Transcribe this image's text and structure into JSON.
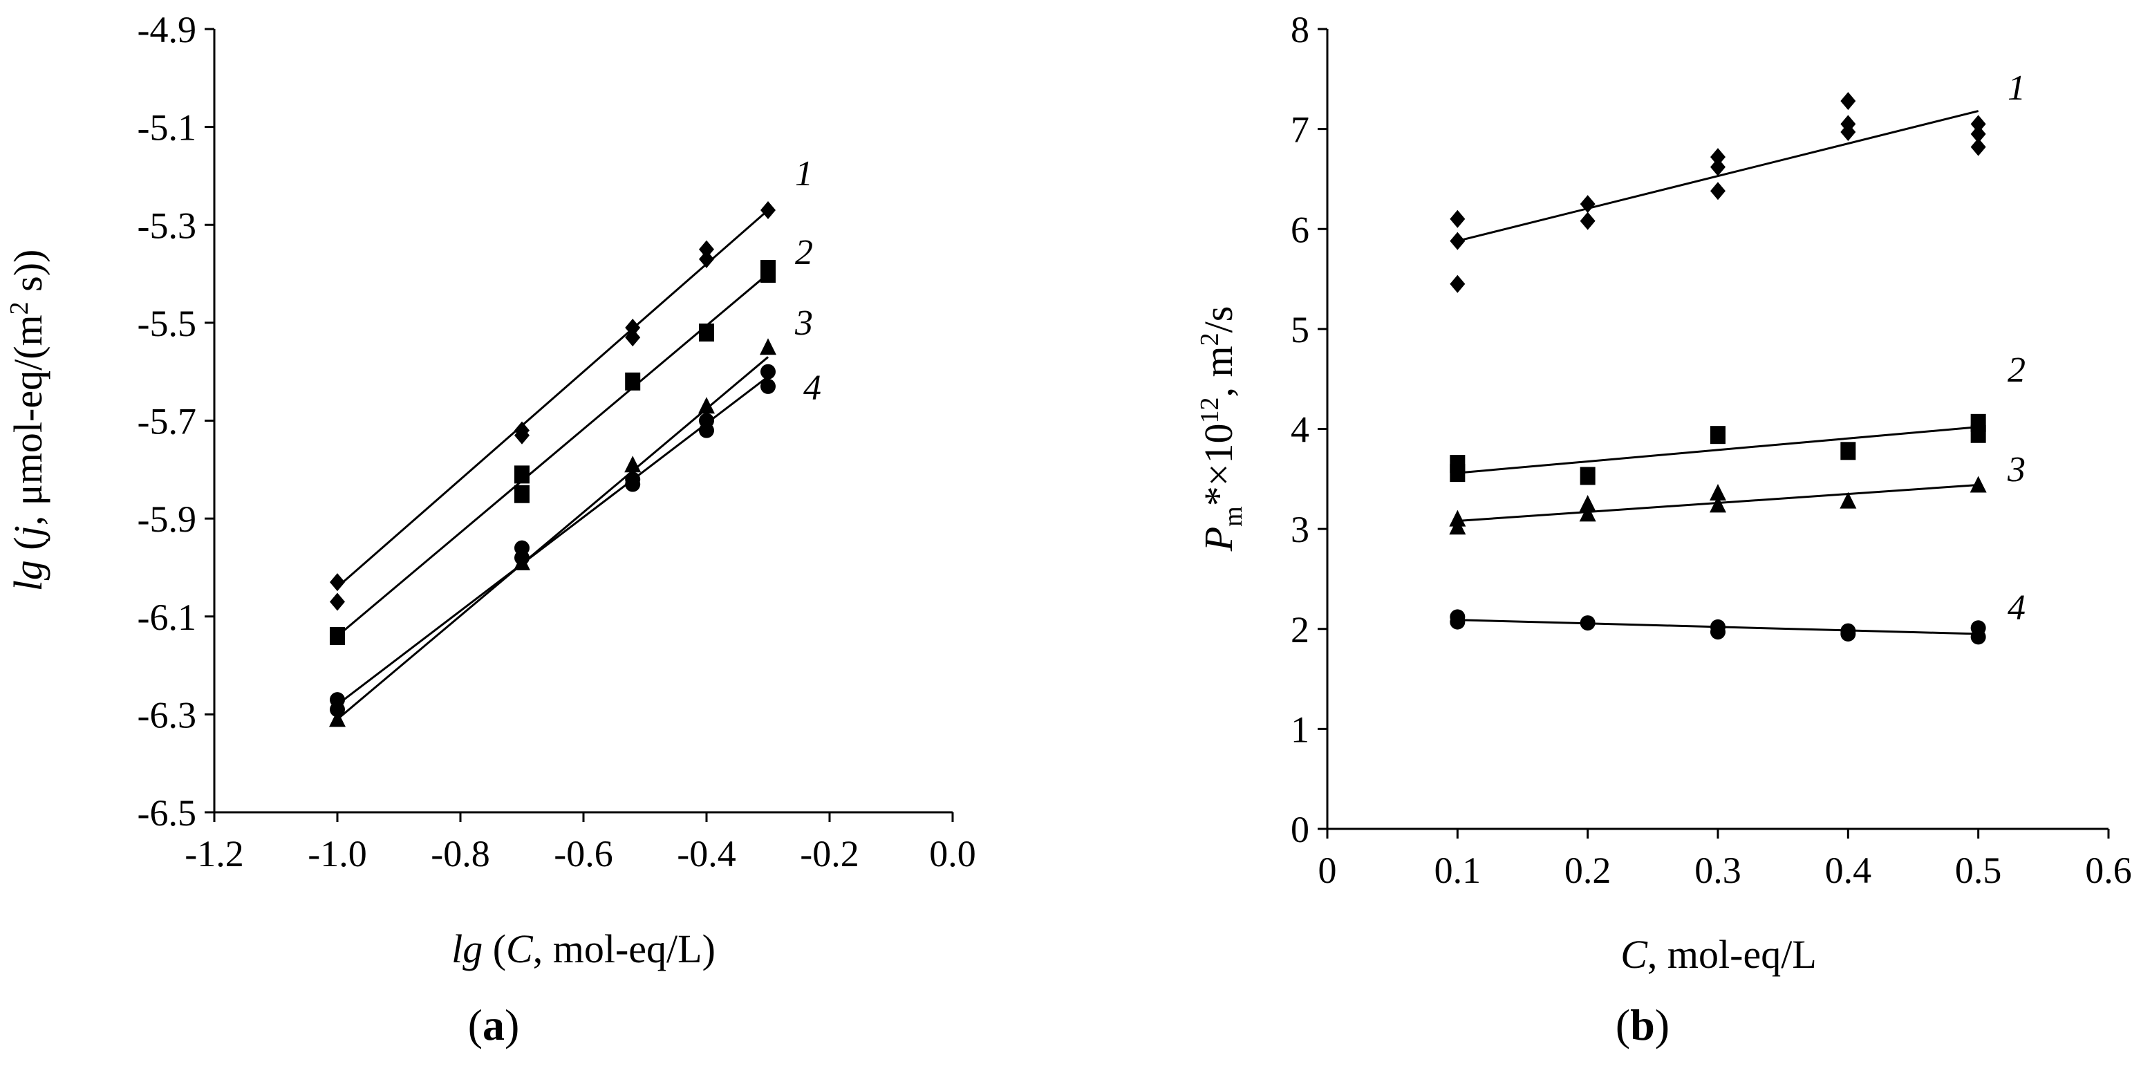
{
  "chart_data": [
    {
      "type": "scatter",
      "panel_label": {
        "open": "(",
        "letter": "a",
        "close": ")"
      },
      "xlabel": {
        "func": "lg",
        "open": " (",
        "var": "C",
        "rest": ", mol-eq/L)"
      },
      "ylabel": {
        "func": "lg",
        "open": " (",
        "var": "j",
        "rest": ", μmol-eq/(m",
        "sup": "2",
        "tail": " s))"
      },
      "xlim": [
        -1.2,
        0.0
      ],
      "ylim": [
        -6.5,
        -4.9
      ],
      "xticks": [
        -1.2,
        -1.0,
        -0.8,
        -0.6,
        -0.4,
        -0.2,
        0.0
      ],
      "xtick_labels": [
        "-1.2",
        "-1.0",
        "-0.8",
        "-0.6",
        "-0.4",
        "-0.2",
        "0.0"
      ],
      "yticks": [
        -6.5,
        -6.3,
        -6.1,
        -5.9,
        -5.7,
        -5.5,
        -5.3,
        -5.1,
        -4.9
      ],
      "ytick_labels": [
        "-6.5",
        "-6.3",
        "-6.1",
        "-5.9",
        "-5.7",
        "-5.5",
        "-5.3",
        "-5.1",
        "-4.9"
      ],
      "series": [
        {
          "name": "1",
          "marker": "diamond",
          "points": [
            [
              -1.0,
              -6.03
            ],
            [
              -1.0,
              -6.07
            ],
            [
              -0.7,
              -5.72
            ],
            [
              -0.7,
              -5.73
            ],
            [
              -0.52,
              -5.51
            ],
            [
              -0.52,
              -5.53
            ],
            [
              -0.4,
              -5.35
            ],
            [
              -0.4,
              -5.37
            ],
            [
              -0.3,
              -5.27
            ]
          ],
          "fit": [
            [
              -1.0,
              -6.04
            ],
            [
              -0.3,
              -5.27
            ]
          ]
        },
        {
          "name": "2",
          "marker": "square",
          "points": [
            [
              -1.0,
              -6.14
            ],
            [
              -0.7,
              -5.81
            ],
            [
              -0.7,
              -5.85
            ],
            [
              -0.52,
              -5.62
            ],
            [
              -0.4,
              -5.52
            ],
            [
              -0.3,
              -5.39
            ],
            [
              -0.3,
              -5.4
            ]
          ],
          "fit": [
            [
              -1.0,
              -6.14
            ],
            [
              -0.3,
              -5.4
            ]
          ]
        },
        {
          "name": "3",
          "marker": "triangle",
          "points": [
            [
              -1.0,
              -6.31
            ],
            [
              -0.7,
              -5.99
            ],
            [
              -0.52,
              -5.79
            ],
            [
              -0.4,
              -5.67
            ],
            [
              -0.3,
              -5.55
            ]
          ],
          "fit": [
            [
              -1.0,
              -6.31
            ],
            [
              -0.3,
              -5.57
            ]
          ]
        },
        {
          "name": "4",
          "marker": "circle",
          "points": [
            [
              -1.0,
              -6.27
            ],
            [
              -1.0,
              -6.29
            ],
            [
              -0.7,
              -5.96
            ],
            [
              -0.7,
              -5.98
            ],
            [
              -0.52,
              -5.82
            ],
            [
              -0.52,
              -5.83
            ],
            [
              -0.4,
              -5.7
            ],
            [
              -0.4,
              -5.72
            ],
            [
              -0.3,
              -5.6
            ],
            [
              -0.3,
              -5.63
            ]
          ],
          "fit": [
            [
              -1.0,
              -6.28
            ],
            [
              -0.3,
              -5.61
            ]
          ]
        }
      ]
    },
    {
      "type": "scatter",
      "panel_label": {
        "open": "(",
        "letter": "b",
        "close": ")"
      },
      "xlabel": {
        "func": "",
        "open": "",
        "var": "C",
        "rest": ", mol-eq/L"
      },
      "ylabel": {
        "var": "P",
        "sub": "m",
        "mid": "*×10",
        "sup": "12",
        "rest": ", m",
        "sup2": "2",
        "tail": "/s"
      },
      "xlim": [
        0,
        0.6
      ],
      "ylim": [
        0,
        8
      ],
      "xticks": [
        0,
        0.1,
        0.2,
        0.3,
        0.4,
        0.5,
        0.6
      ],
      "xtick_labels": [
        "0",
        "0.1",
        "0.2",
        "0.3",
        "0.4",
        "0.5",
        "0.6"
      ],
      "yticks": [
        0,
        1,
        2,
        3,
        4,
        5,
        6,
        7,
        8
      ],
      "ytick_labels": [
        "0",
        "1",
        "2",
        "3",
        "4",
        "5",
        "6",
        "7",
        "8"
      ],
      "series": [
        {
          "name": "1",
          "marker": "diamond",
          "points": [
            [
              0.1,
              6.1
            ],
            [
              0.1,
              5.88
            ],
            [
              0.1,
              5.45
            ],
            [
              0.2,
              6.25
            ],
            [
              0.2,
              6.08
            ],
            [
              0.3,
              6.72
            ],
            [
              0.3,
              6.62
            ],
            [
              0.3,
              6.38
            ],
            [
              0.4,
              7.28
            ],
            [
              0.4,
              7.05
            ],
            [
              0.4,
              6.97
            ],
            [
              0.5,
              7.05
            ],
            [
              0.5,
              6.95
            ],
            [
              0.5,
              6.82
            ]
          ],
          "fit": [
            [
              0.1,
              5.88
            ],
            [
              0.5,
              7.18
            ]
          ]
        },
        {
          "name": "2",
          "marker": "square",
          "points": [
            [
              0.1,
              3.65
            ],
            [
              0.1,
              3.56
            ],
            [
              0.2,
              3.53
            ],
            [
              0.3,
              3.94
            ],
            [
              0.4,
              3.78
            ],
            [
              0.5,
              4.06
            ],
            [
              0.5,
              3.95
            ]
          ],
          "fit": [
            [
              0.1,
              3.56
            ],
            [
              0.5,
              4.02
            ]
          ]
        },
        {
          "name": "3",
          "marker": "triangle",
          "points": [
            [
              0.1,
              3.1
            ],
            [
              0.1,
              3.02
            ],
            [
              0.2,
              3.25
            ],
            [
              0.2,
              3.15
            ],
            [
              0.3,
              3.36
            ],
            [
              0.3,
              3.24
            ],
            [
              0.4,
              3.28
            ],
            [
              0.5,
              3.44
            ]
          ],
          "fit": [
            [
              0.1,
              3.08
            ],
            [
              0.5,
              3.44
            ]
          ]
        },
        {
          "name": "4",
          "marker": "circle",
          "points": [
            [
              0.1,
              2.12
            ],
            [
              0.1,
              2.07
            ],
            [
              0.2,
              2.06
            ],
            [
              0.3,
              2.02
            ],
            [
              0.3,
              1.97
            ],
            [
              0.4,
              1.98
            ],
            [
              0.4,
              1.95
            ],
            [
              0.5,
              2.01
            ],
            [
              0.5,
              1.92
            ]
          ],
          "fit": [
            [
              0.1,
              2.09
            ],
            [
              0.5,
              1.95
            ]
          ]
        }
      ]
    }
  ]
}
